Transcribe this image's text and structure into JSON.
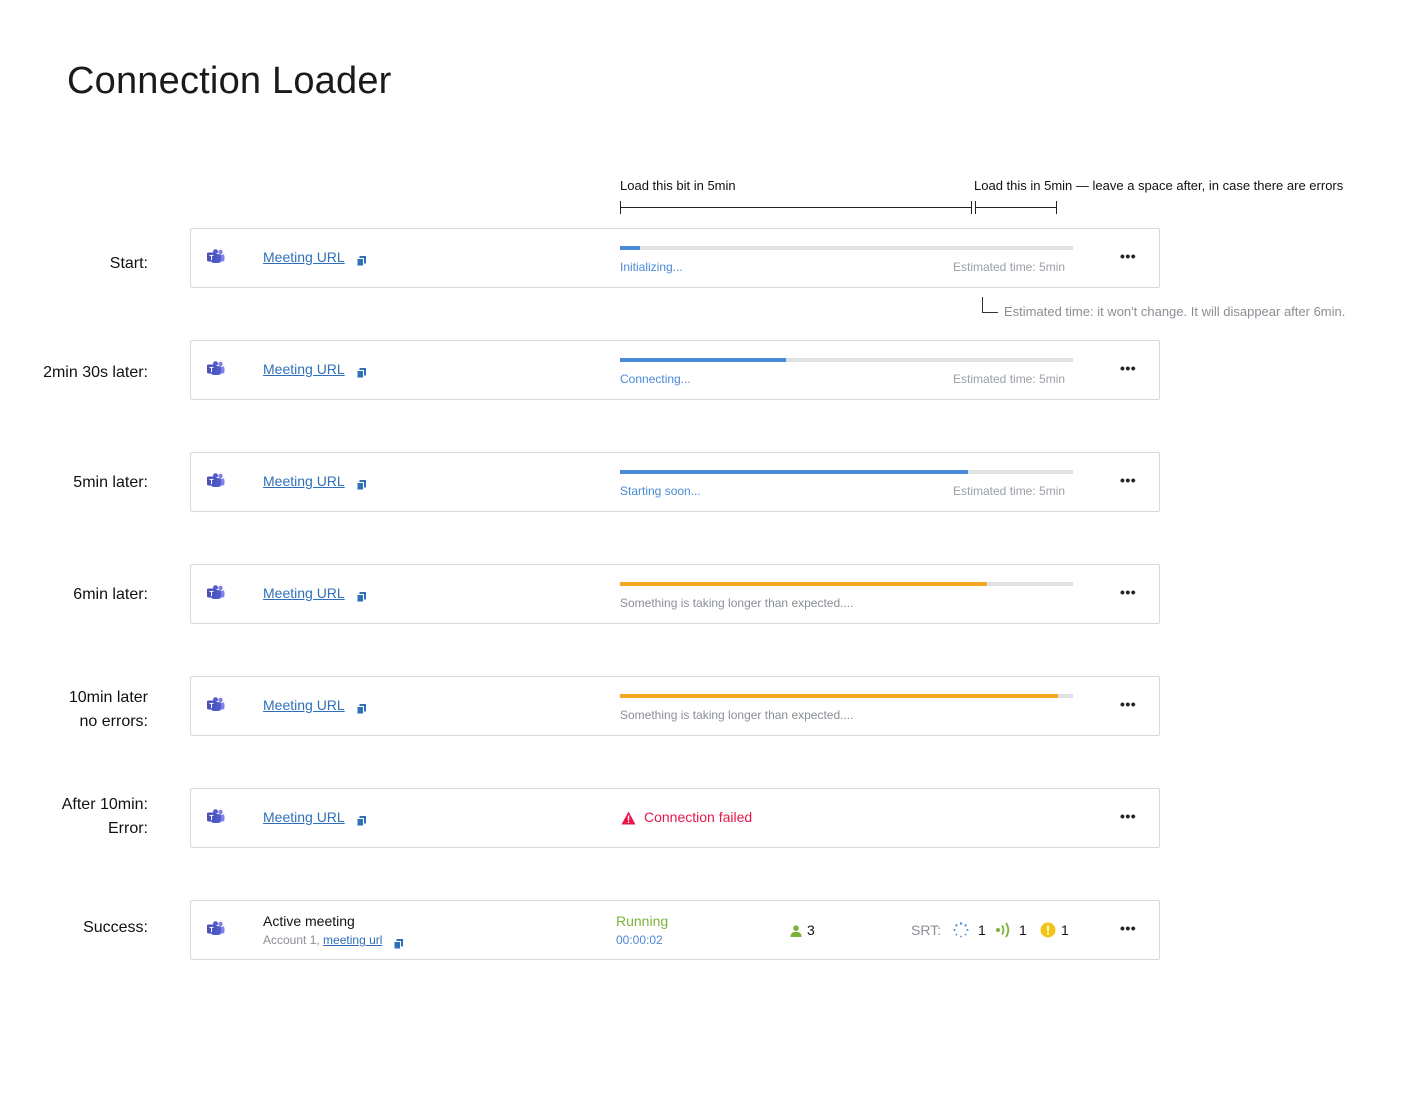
{
  "page_title": "Connection Loader",
  "annotations": {
    "first_span": "Load this bit in 5min",
    "second_span": "Load this in 5min — leave a space after, in case there are errors",
    "eta_note": "Estimated time: it won't change. It will disappear after 6min."
  },
  "colors": {
    "progress_blue": "#4a8ad8",
    "progress_orange": "#f5a623",
    "error": "#e8174a",
    "running": "#7bb33a",
    "link": "#2f6fb8"
  },
  "rows": [
    {
      "label": "Start:",
      "link_text": "Meeting URL",
      "progress": 0.045,
      "color": "blue",
      "status": "Initializing...",
      "eta": "Estimated time: 5min"
    },
    {
      "label": "2min 30s later:",
      "link_text": "Meeting URL",
      "progress": 0.367,
      "color": "blue",
      "status": "Connecting...",
      "eta": "Estimated time: 5min"
    },
    {
      "label": "5min later:",
      "link_text": "Meeting URL",
      "progress": 0.768,
      "color": "blue",
      "status": "Starting soon...",
      "eta": "Estimated time: 5min"
    },
    {
      "label": "6min later:",
      "link_text": "Meeting URL",
      "progress": 0.81,
      "color": "orange",
      "status": "Something is taking longer than expected...."
    },
    {
      "label_line1": "10min later",
      "label_line2": "no errors:",
      "link_text": "Meeting URL",
      "progress": 0.967,
      "color": "orange",
      "status": "Something is taking longer than expected...."
    },
    {
      "label_line1": "After 10min:",
      "label_line2": "Error:",
      "link_text": "Meeting URL",
      "error_text": "Connection failed"
    }
  ],
  "success": {
    "label": "Success:",
    "meeting_name": "Active meeting",
    "account": "Account 1,",
    "link_text": "meeting url",
    "state": "Running",
    "duration": "00:00:02",
    "participants": "3",
    "srt_label": "SRT:",
    "srt_pending": "1",
    "srt_live": "1",
    "srt_warning": "1"
  }
}
